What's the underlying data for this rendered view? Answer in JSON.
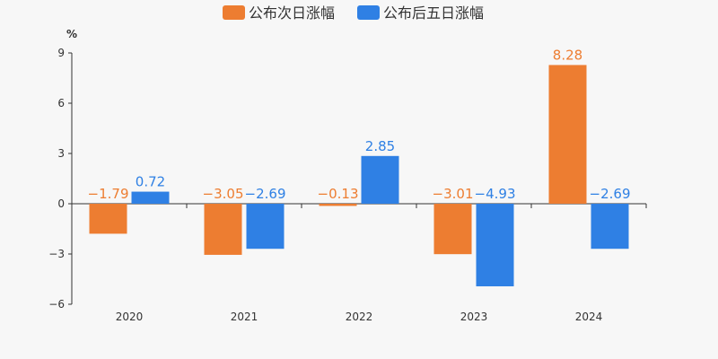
{
  "chart_data": {
    "type": "bar",
    "categories": [
      "2020",
      "2021",
      "2022",
      "2023",
      "2024"
    ],
    "series": [
      {
        "name": "公布次日涨幅",
        "color": "#ed7d31",
        "values": [
          -1.79,
          -3.05,
          -0.13,
          -3.01,
          8.28
        ],
        "labels": [
          "−1.79",
          "−3.05",
          "−0.13",
          "−3.01",
          "8.28"
        ]
      },
      {
        "name": "公布后五日涨幅",
        "color": "#2f80e4",
        "values": [
          0.72,
          -2.69,
          2.85,
          -4.93,
          -2.69
        ],
        "labels": [
          "0.72",
          "−2.69",
          "2.85",
          "−4.93",
          "−2.69"
        ]
      }
    ],
    "ylabel": "%",
    "ylim": [
      -6,
      9
    ],
    "yticks": [
      9,
      6,
      3,
      0,
      -3,
      -6
    ],
    "ytick_labels": [
      "9",
      "6",
      "3",
      "0",
      "−3",
      "−6"
    ],
    "legend_position": "top-center",
    "grid": false
  }
}
